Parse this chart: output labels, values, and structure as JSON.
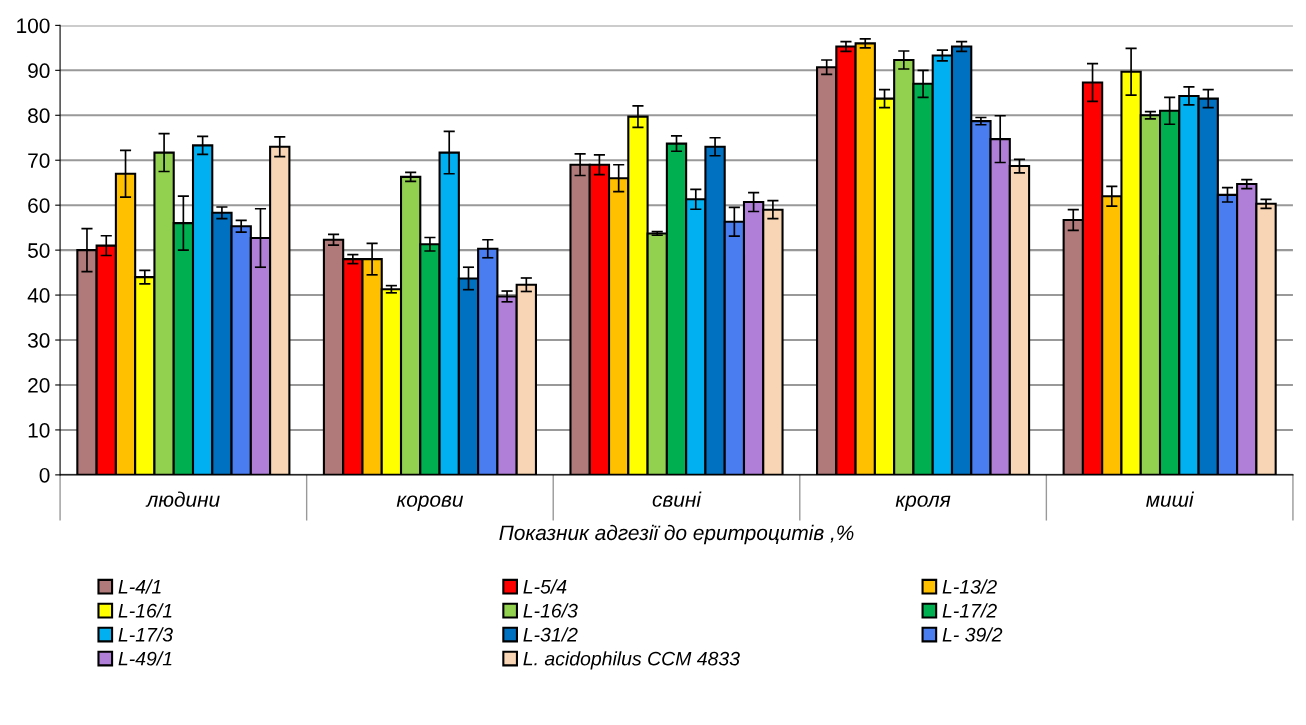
{
  "chart_data": {
    "type": "bar",
    "xlabel": "Показник адгезії до еритроцитів ,%",
    "categories": [
      "людини",
      "корови",
      "свині",
      "кроля",
      "миші"
    ],
    "ylim": [
      0,
      100
    ],
    "yticks": [
      0,
      10,
      20,
      30,
      40,
      50,
      60,
      70,
      80,
      90,
      100
    ],
    "grid": "y",
    "legend": "bottom",
    "series": [
      {
        "name": "L-4/1",
        "color": "#b07a7a",
        "values": [
          50,
          52.3,
          69,
          90.7,
          56.7
        ],
        "errors": [
          4.8,
          1.2,
          2.4,
          1.6,
          2.3
        ]
      },
      {
        "name": "L-5/4",
        "color": "#ff0000",
        "values": [
          51,
          48,
          69,
          95.3,
          87.3
        ],
        "errors": [
          2.2,
          1,
          2.2,
          1.1,
          4.2
        ]
      },
      {
        "name": "L-13/2",
        "color": "#ffc000",
        "values": [
          67,
          48,
          66,
          96,
          62
        ],
        "errors": [
          5.2,
          3.5,
          3,
          1,
          2.2
        ]
      },
      {
        "name": "L-16/1",
        "color": "#ffff00",
        "values": [
          44,
          41.3,
          79.7,
          83.7,
          89.7
        ],
        "errors": [
          1.5,
          0.8,
          2.4,
          2,
          5.2
        ]
      },
      {
        "name": "L-16/3",
        "color": "#92d050",
        "values": [
          71.7,
          66.3,
          53.7,
          92.3,
          80
        ],
        "errors": [
          4.2,
          1,
          0.4,
          2,
          0.8
        ]
      },
      {
        "name": "L-17/2",
        "color": "#00b050",
        "values": [
          56,
          51.3,
          73.7,
          87,
          81
        ],
        "errors": [
          6,
          1.5,
          1.7,
          3,
          3
        ]
      },
      {
        "name": "L-17/3",
        "color": "#00b0f0",
        "values": [
          73.3,
          71.7,
          61.3,
          93.3,
          84.3
        ],
        "errors": [
          2,
          4.7,
          2.2,
          1.2,
          2
        ]
      },
      {
        "name": "L-31/2",
        "color": "#0070c0",
        "values": [
          58.3,
          43.7,
          73,
          95.3,
          83.7
        ],
        "errors": [
          1.3,
          2.5,
          2,
          1.1,
          2
        ]
      },
      {
        "name": "L- 39/2",
        "color": "#4a7ef0",
        "values": [
          55.3,
          50.3,
          56.3,
          78.7,
          62.3
        ],
        "errors": [
          1.3,
          2,
          3.2,
          0.8,
          1.6
        ]
      },
      {
        "name": "L-49/1",
        "color": "#b080d8",
        "values": [
          52.7,
          39.7,
          60.7,
          74.7,
          64.7
        ],
        "errors": [
          6.5,
          1.2,
          2.1,
          5.2,
          1
        ]
      },
      {
        "name": "L. acidophilus CCM 4833",
        "color": "#f8d5b5",
        "values": [
          73,
          42.3,
          59,
          68.7,
          60.3
        ],
        "errors": [
          2.2,
          1.5,
          2,
          1.5,
          1
        ]
      }
    ]
  }
}
